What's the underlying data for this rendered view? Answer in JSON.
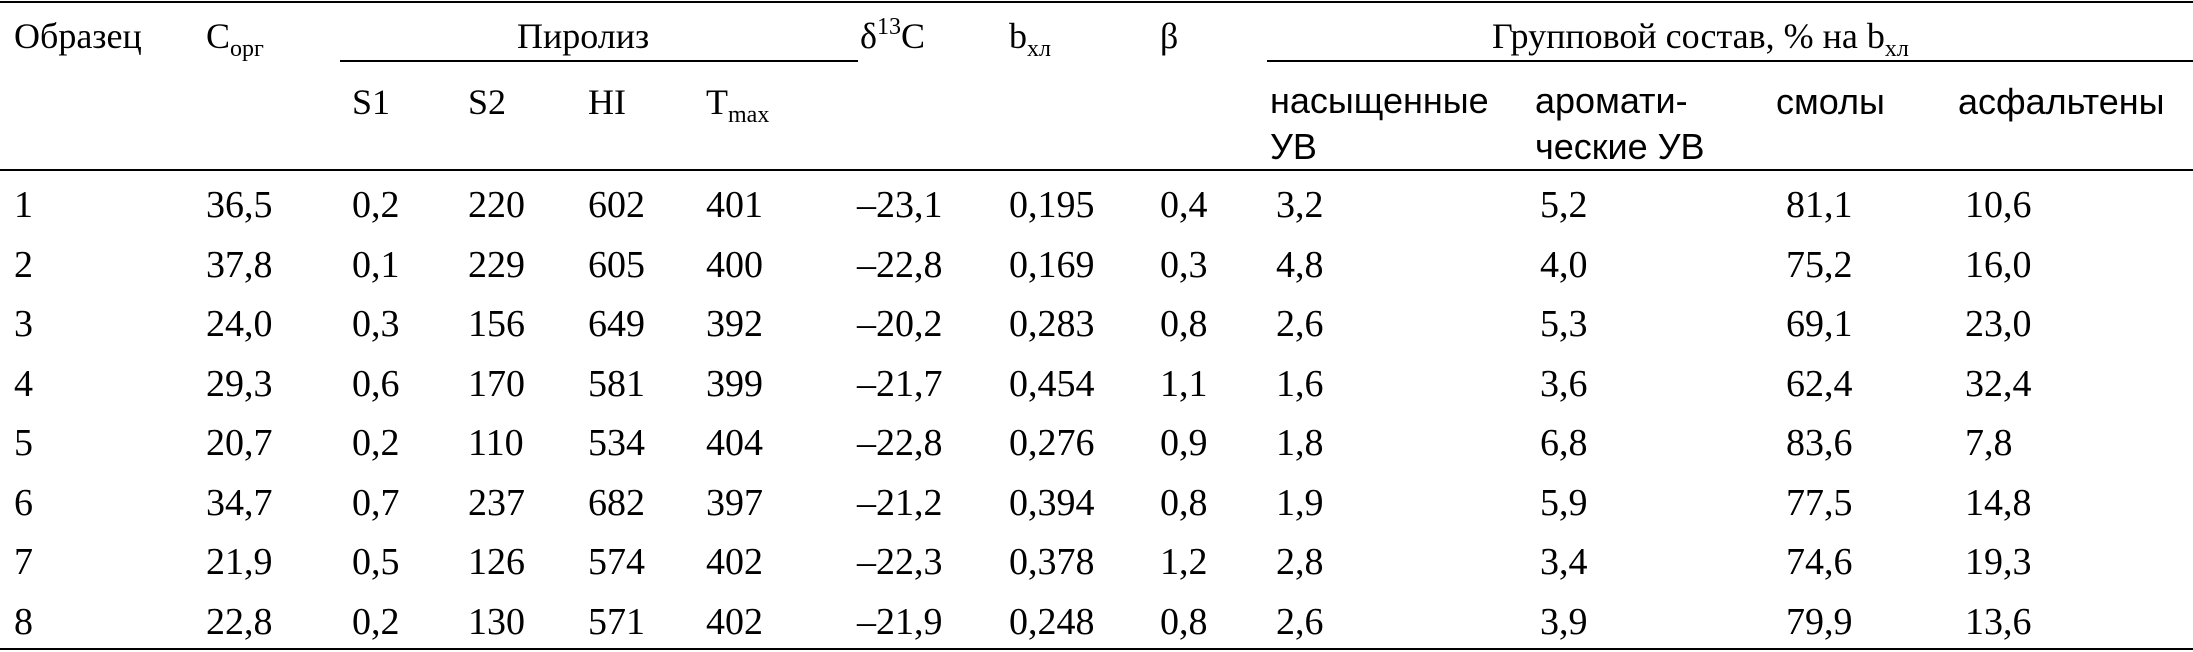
{
  "table": {
    "header": {
      "sample": "Образец",
      "corg_main": "C",
      "corg_sub": "орг",
      "pyrolysis": "Пиролиз",
      "s1": "S1",
      "s2": "S2",
      "hi": "HI",
      "tmax_main": "T",
      "tmax_sub": "max",
      "delta_sym": "δ",
      "delta_sup": "13",
      "delta_elem": "C",
      "bchl_main": "b",
      "bchl_sub": "хл",
      "beta": "β",
      "group_main": "Групповой состав, % на b",
      "group_sub": "хл",
      "saturated_l1": "насыщенные",
      "saturated_l2": "УВ",
      "aromatic_l1": "арома­ти-",
      "aromatic_l2": "ческие УВ",
      "resins": "смолы",
      "asphaltenes": "асфальтены"
    },
    "rows": [
      {
        "sample": "1",
        "corg": "36,5",
        "s1": "0,2",
        "s2": "220",
        "hi": "602",
        "tmax": "401",
        "d13c": "–23,1",
        "bchl": "0,195",
        "beta": "0,4",
        "sat": "3,2",
        "aro": "5,2",
        "res": "81,1",
        "asph": "10,6"
      },
      {
        "sample": "2",
        "corg": "37,8",
        "s1": "0,1",
        "s2": "229",
        "hi": "605",
        "tmax": "400",
        "d13c": "–22,8",
        "bchl": "0,169",
        "beta": "0,3",
        "sat": "4,8",
        "aro": "4,0",
        "res": "75,2",
        "asph": "16,0"
      },
      {
        "sample": "3",
        "corg": "24,0",
        "s1": "0,3",
        "s2": "156",
        "hi": "649",
        "tmax": "392",
        "d13c": "–20,2",
        "bchl": "0,283",
        "beta": "0,8",
        "sat": "2,6",
        "aro": "5,3",
        "res": "69,1",
        "asph": "23,0"
      },
      {
        "sample": "4",
        "corg": "29,3",
        "s1": "0,6",
        "s2": "170",
        "hi": "581",
        "tmax": "399",
        "d13c": "–21,7",
        "bchl": "0,454",
        "beta": "1,1",
        "sat": "1,6",
        "aro": "3,6",
        "res": "62,4",
        "asph": "32,4"
      },
      {
        "sample": "5",
        "corg": "20,7",
        "s1": "0,2",
        "s2": "110",
        "hi": "534",
        "tmax": "404",
        "d13c": "–22,8",
        "bchl": "0,276",
        "beta": "0,9",
        "sat": "1,8",
        "aro": "6,8",
        "res": "83,6",
        "asph": "7,8"
      },
      {
        "sample": "6",
        "corg": "34,7",
        "s1": "0,7",
        "s2": "237",
        "hi": "682",
        "tmax": "397",
        "d13c": "–21,2",
        "bchl": "0,394",
        "beta": "0,8",
        "sat": "1,9",
        "aro": "5,9",
        "res": "77,5",
        "asph": "14,8"
      },
      {
        "sample": "7",
        "corg": "21,9",
        "s1": "0,5",
        "s2": "126",
        "hi": "574",
        "tmax": "402",
        "d13c": "–22,3",
        "bchl": "0,378",
        "beta": "1,2",
        "sat": "2,8",
        "aro": "3,4",
        "res": "74,6",
        "asph": "19,3"
      },
      {
        "sample": "8",
        "corg": "22,8",
        "s1": "0,2",
        "s2": "130",
        "hi": "571",
        "tmax": "402",
        "d13c": "–21,9",
        "bchl": "0,248",
        "beta": "0,8",
        "sat": "2,6",
        "aro": "3,9",
        "res": "79,9",
        "asph": "13,6"
      }
    ]
  }
}
